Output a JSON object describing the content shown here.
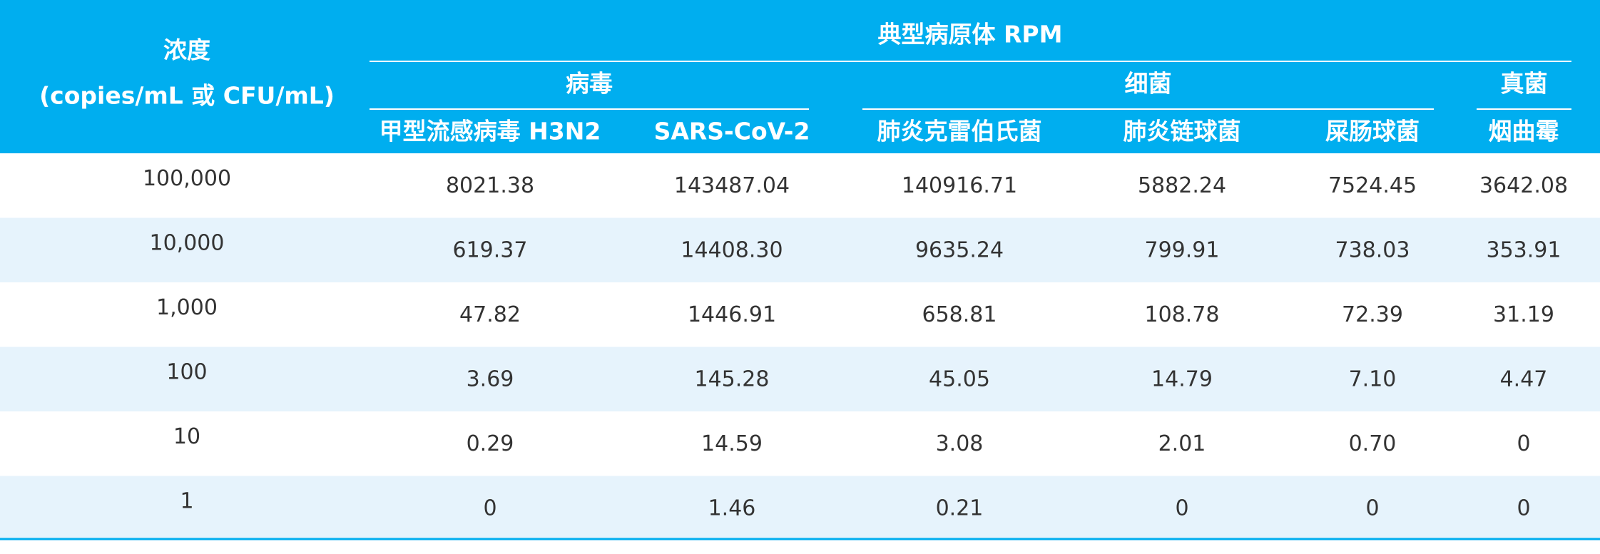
{
  "header": {
    "concentration": {
      "line1": "浓度",
      "line2": "(copies/mL 或 CFU/mL)"
    },
    "title": "典型病原体 RPM",
    "groups": [
      {
        "name": "病毒",
        "columns": [
          "甲型流感病毒 H3N2",
          "SARS-CoV-2"
        ]
      },
      {
        "name": "细菌",
        "columns": [
          "肺炎克雷伯氏菌",
          "肺炎链球菌",
          "屎肠球菌"
        ]
      },
      {
        "name": "真菌",
        "columns": [
          "烟曲霉"
        ]
      }
    ]
  },
  "table": {
    "rows": [
      [
        "100,000",
        "8021.38",
        "143487.04",
        "140916.71",
        "5882.24",
        "7524.45",
        "3642.08"
      ],
      [
        "10,000",
        "619.37",
        "14408.30",
        "9635.24",
        "799.91",
        "738.03",
        "353.91"
      ],
      [
        "1,000",
        "47.82",
        "1446.91",
        "658.81",
        "108.78",
        "72.39",
        "31.19"
      ],
      [
        "100",
        "3.69",
        "145.28",
        "45.05",
        "14.79",
        "7.10",
        "4.47"
      ],
      [
        "10",
        "0.29",
        "14.59",
        "3.08",
        "2.01",
        "0.70",
        "0"
      ],
      [
        "1",
        "0",
        "1.46",
        "0.21",
        "0",
        "0",
        "0"
      ]
    ]
  }
}
